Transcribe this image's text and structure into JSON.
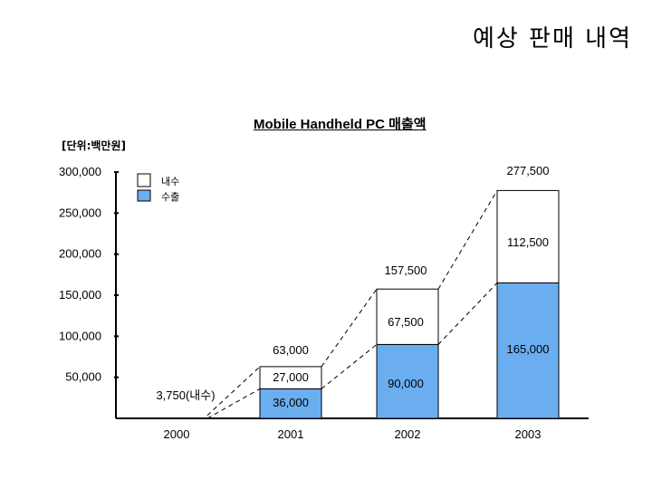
{
  "page_heading": "예상 판매 내역",
  "chart_data": {
    "type": "bar",
    "stacked": true,
    "title": "Mobile Handheld PC 매출액",
    "unit_label": "[단위:백만원]",
    "categories": [
      "2000",
      "2001",
      "2002",
      "2003"
    ],
    "series": [
      {
        "name": "수출",
        "color": "#6aaef0",
        "values": [
          0,
          36000,
          90000,
          165000
        ],
        "labels": [
          "",
          "36,000",
          "90,000",
          "165,000"
        ]
      },
      {
        "name": "내수",
        "color": "#ffffff",
        "values": [
          3750,
          27000,
          67500,
          112500
        ],
        "labels": [
          "3,750(내수)",
          "27,000",
          "67,500",
          "112,500"
        ]
      }
    ],
    "totals": [
      3750,
      63000,
      157500,
      277500
    ],
    "total_labels": [
      "",
      "63,000",
      "157,500",
      "277,500"
    ],
    "yticks": [
      {
        "value": 50000,
        "label": "50,000"
      },
      {
        "value": 100000,
        "label": "100,000"
      },
      {
        "value": 150000,
        "label": "150,000"
      },
      {
        "value": 200000,
        "label": "200,000"
      },
      {
        "value": 250000,
        "label": "250,000"
      },
      {
        "value": 300000,
        "label": "300,000"
      }
    ],
    "ylim": [
      0,
      300000
    ],
    "legend_position": "top-left",
    "grid": false
  }
}
